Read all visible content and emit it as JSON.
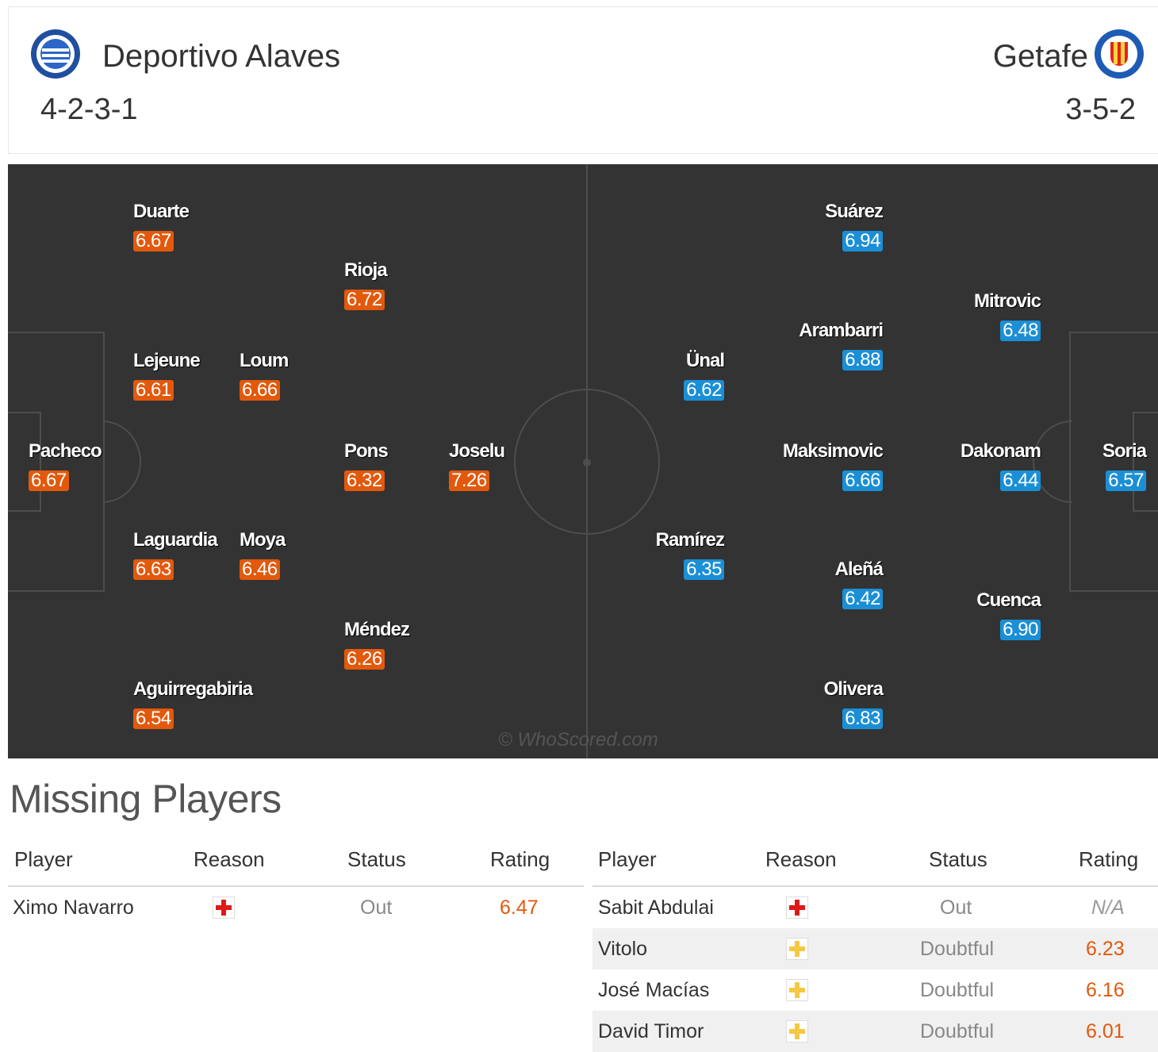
{
  "header": {
    "home": {
      "name": "Deportivo Alaves",
      "formation": "4-2-3-1"
    },
    "away": {
      "name": "Getafe",
      "formation": "3-5-2"
    }
  },
  "pitch": {
    "watermark": "© WhoScored.com",
    "home_players": [
      {
        "name": "Duarte",
        "rating": "6.67"
      },
      {
        "name": "Rioja",
        "rating": "6.72"
      },
      {
        "name": "Lejeune",
        "rating": "6.61"
      },
      {
        "name": "Loum",
        "rating": "6.66"
      },
      {
        "name": "Pacheco",
        "rating": "6.67"
      },
      {
        "name": "Pons",
        "rating": "6.32"
      },
      {
        "name": "Joselu",
        "rating": "7.26"
      },
      {
        "name": "Laguardia",
        "rating": "6.63"
      },
      {
        "name": "Moya",
        "rating": "6.46"
      },
      {
        "name": "Méndez",
        "rating": "6.26"
      },
      {
        "name": "Aguirregabiria",
        "rating": "6.54"
      }
    ],
    "away_players": [
      {
        "name": "Suárez",
        "rating": "6.94"
      },
      {
        "name": "Mitrovic",
        "rating": "6.48"
      },
      {
        "name": "Arambarri",
        "rating": "6.88"
      },
      {
        "name": "Ünal",
        "rating": "6.62"
      },
      {
        "name": "Maksimovic",
        "rating": "6.66"
      },
      {
        "name": "Dakonam",
        "rating": "6.44"
      },
      {
        "name": "Soria",
        "rating": "6.57"
      },
      {
        "name": "Ramírez",
        "rating": "6.35"
      },
      {
        "name": "Aleñá",
        "rating": "6.42"
      },
      {
        "name": "Cuenca",
        "rating": "6.90"
      },
      {
        "name": "Olivera",
        "rating": "6.83"
      }
    ]
  },
  "missing": {
    "title": "Missing Players",
    "columns": {
      "player": "Player",
      "reason": "Reason",
      "status": "Status",
      "rating": "Rating"
    },
    "home": [
      {
        "player": "Ximo Navarro",
        "reason": "injury",
        "status": "Out",
        "rating": "6.47"
      }
    ],
    "away": [
      {
        "player": "Sabit Abdulai",
        "reason": "injury",
        "status": "Out",
        "rating": "N/A"
      },
      {
        "player": "Vitolo",
        "reason": "doubtful",
        "status": "Doubtful",
        "rating": "6.23"
      },
      {
        "player": "José Macías",
        "reason": "doubtful",
        "status": "Doubtful",
        "rating": "6.16"
      },
      {
        "player": "David Timor",
        "reason": "doubtful",
        "status": "Doubtful",
        "rating": "6.01"
      }
    ]
  },
  "colors": {
    "home_rating": "#e2590c",
    "away_rating": "#1b8fd6",
    "pitch": "#333333"
  }
}
